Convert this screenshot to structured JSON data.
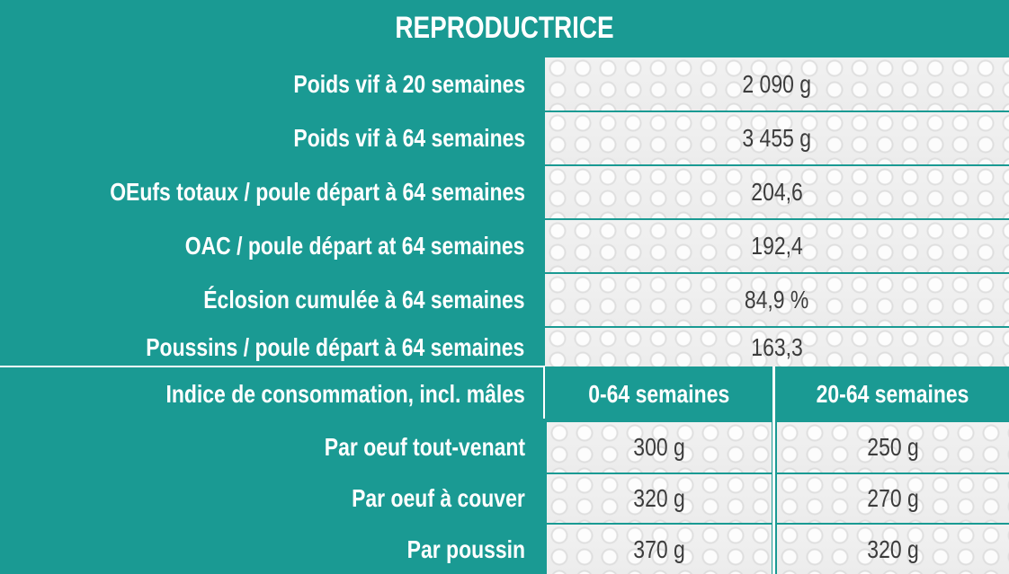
{
  "title": "REPRODUCTRICE",
  "rows": [
    {
      "label": "Poids vif à 20 semaines",
      "value": "2 090 g"
    },
    {
      "label": "Poids vif à 64 semaines",
      "value": "3 455 g"
    },
    {
      "label": "OEufs totaux / poule départ à 64 semaines",
      "value": "204,6"
    },
    {
      "label": "OAC / poule départ at 64 semaines",
      "value": "192,4"
    },
    {
      "label": "Éclosion cumulée à 64 semaines",
      "value": "84,9 %"
    },
    {
      "label": "Poussins / poule départ à 64 semaines",
      "value": "163,3"
    }
  ],
  "consumption": {
    "label": "Indice de consommation, incl. mâles",
    "col1": "0-64 semaines",
    "col2": "20-64 semaines",
    "rows": [
      {
        "label": "Par oeuf tout-venant",
        "v1": "300 g",
        "v2": "250 g"
      },
      {
        "label": "Par oeuf à couver",
        "v1": "320 g",
        "v2": "270 g"
      },
      {
        "label": "Par poussin",
        "v1": "370 g",
        "v2": "320 g"
      }
    ]
  },
  "colors": {
    "teal": "#1a9a93",
    "cell": "#efefef",
    "text": "#3c3c3c"
  }
}
